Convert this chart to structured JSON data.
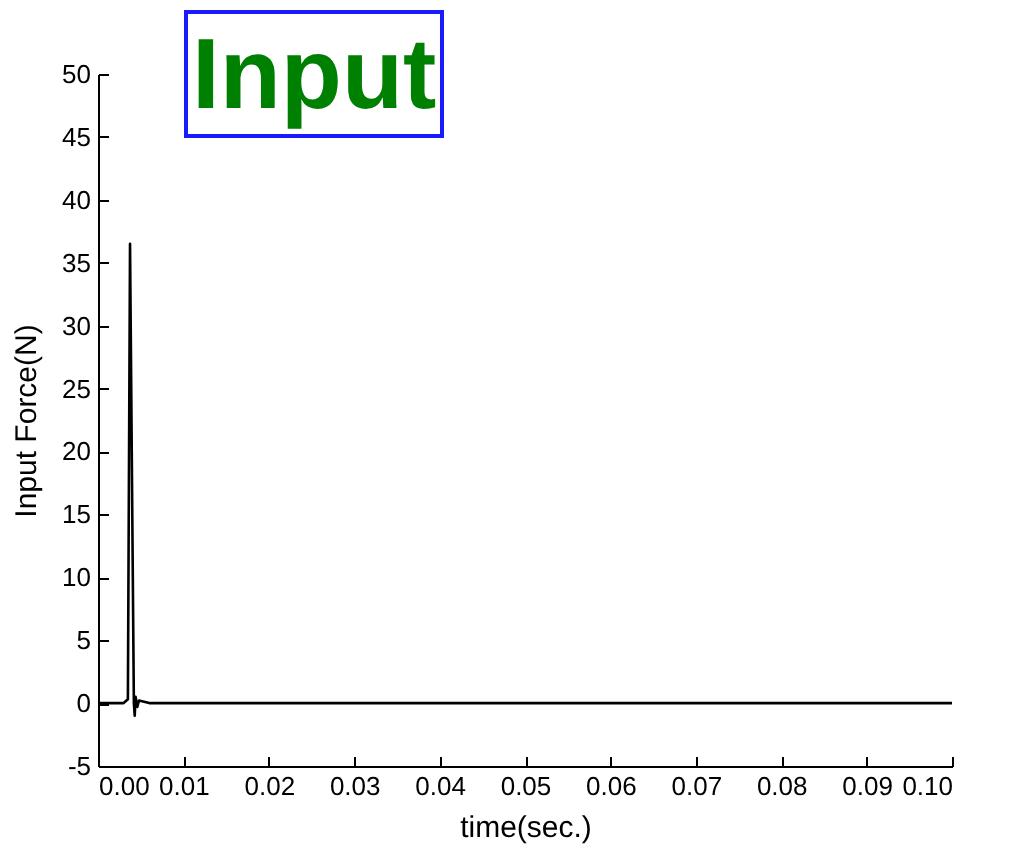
{
  "chart_data": {
    "type": "line",
    "title": "Input",
    "xlabel": "time(sec.)",
    "ylabel": "Input Force(N)",
    "x": [
      0,
      0.003,
      0.0035,
      0.00375,
      0.0042,
      0.0043,
      0.0044,
      0.0046,
      0.0048,
      0.006,
      0.1
    ],
    "series": [
      {
        "color": "#000000",
        "values": [
          0,
          0,
          0.3,
          36.5,
          0,
          -1,
          0.5,
          -0.3,
          0.2,
          0,
          0
        ]
      }
    ],
    "xlim": [
      0,
      0.1
    ],
    "xticks": [
      {
        "value": 0,
        "label": "0.00"
      },
      0.01,
      0.02,
      0.03,
      0.04,
      0.05,
      0.06,
      0.07,
      0.08,
      0.09,
      {
        "value": 0.1,
        "label": "0.10"
      }
    ],
    "ylim": [
      -5,
      50
    ],
    "yticks": [
      -5,
      0,
      5,
      10,
      15,
      20,
      25,
      30,
      35,
      40,
      45,
      50
    ],
    "grid": false,
    "marker": "none",
    "line_style": "solid"
  }
}
